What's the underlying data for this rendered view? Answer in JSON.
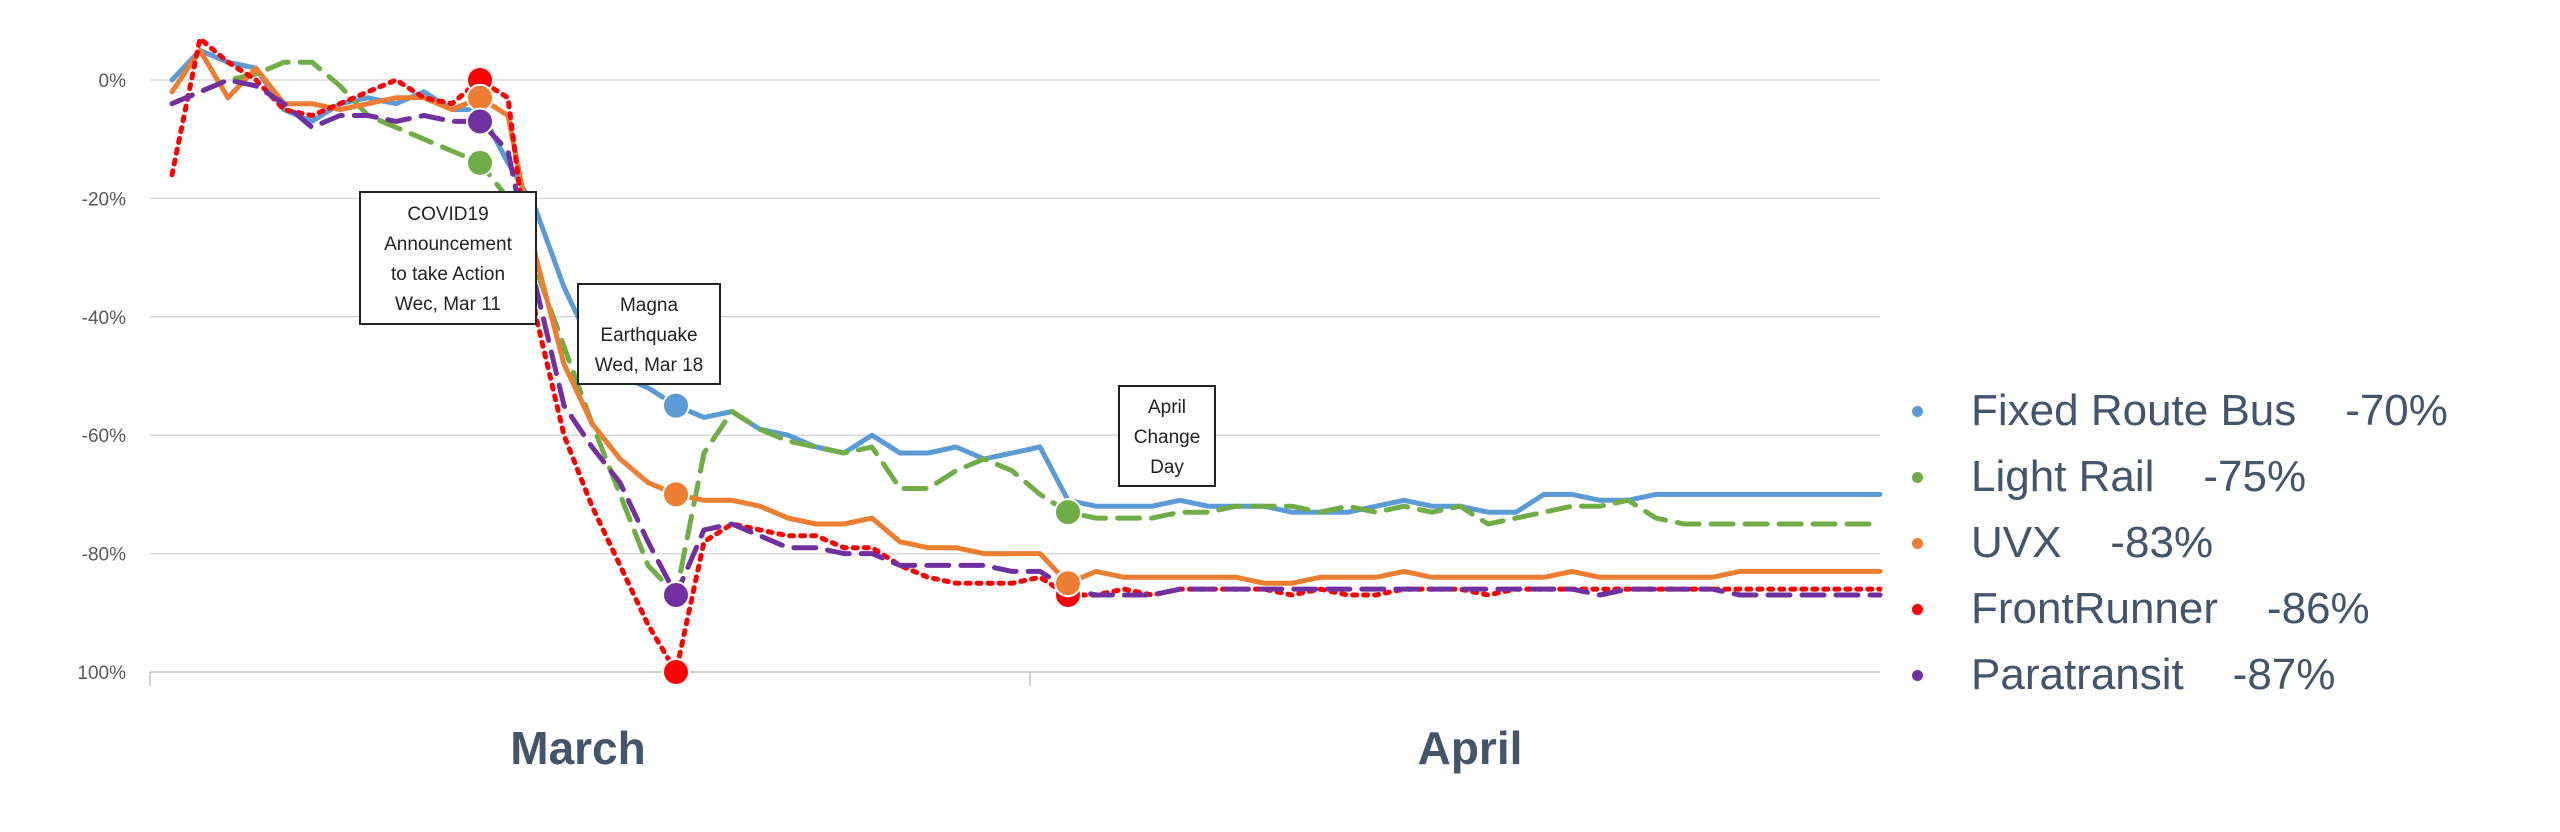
{
  "chart_data": {
    "type": "line",
    "title": "",
    "xlabel": "",
    "ylabel": "",
    "ylim": [
      -100,
      10
    ],
    "y_ticks": [
      "0%",
      "-20%",
      "-40%",
      "-60%",
      "-80%",
      "100%"
    ],
    "month_labels": [
      "March",
      "April"
    ],
    "x": [
      "Feb 29",
      "Mar 1",
      "Mar 2",
      "Mar 3",
      "Mar 4",
      "Mar 5",
      "Mar 6",
      "Mar 7",
      "Mar 8",
      "Mar 9",
      "Mar 10",
      "Mar 11",
      "Mar 12",
      "Mar 13",
      "Mar 14",
      "Mar 15",
      "Mar 16",
      "Mar 17",
      "Mar 18",
      "Mar 19",
      "Mar 20",
      "Mar 21",
      "Mar 22",
      "Mar 23",
      "Mar 24",
      "Mar 25",
      "Mar 26",
      "Mar 27",
      "Mar 28",
      "Mar 29",
      "Mar 30",
      "Mar 31",
      "Apr 1",
      "Apr 2",
      "Apr 3",
      "Apr 4",
      "Apr 5",
      "Apr 6",
      "Apr 7",
      "Apr 8",
      "Apr 9",
      "Apr 10",
      "Apr 11",
      "Apr 12",
      "Apr 13",
      "Apr 14",
      "Apr 15",
      "Apr 16",
      "Apr 17",
      "Apr 18",
      "Apr 19",
      "Apr 20",
      "Apr 21",
      "Apr 22",
      "Apr 23",
      "Apr 24",
      "Apr 25",
      "Apr 26",
      "Apr 27",
      "Apr 28",
      "Apr 29",
      "Apr 30"
    ],
    "series": [
      {
        "name": "Fixed Route Bus",
        "change": "-70%",
        "color": "#5B9BD5",
        "dash": "solid",
        "values": [
          0,
          5,
          3,
          2,
          -5,
          -7,
          -4,
          -3,
          -4,
          -2,
          -5,
          -5,
          -14,
          -22,
          -35,
          -45,
          -50,
          -52,
          -55,
          -57,
          -56,
          -59,
          -60,
          -62,
          -63,
          -60,
          -63,
          -63,
          -62,
          -64,
          -63,
          -62,
          -71,
          -72,
          -72,
          -72,
          -71,
          -72,
          -72,
          -72,
          -73,
          -73,
          -73,
          -72,
          -71,
          -72,
          -72,
          -73,
          -73,
          -70,
          -70,
          -71,
          -71,
          -70,
          -70,
          -70,
          -70,
          -70,
          -70,
          -70,
          -70,
          -70
        ]
      },
      {
        "name": "Light Rail",
        "change": "-75%",
        "color": "#70AD47",
        "dash": "dashed",
        "values": [
          -4,
          -2,
          0,
          1,
          3,
          3,
          -1,
          -6,
          -8,
          -10,
          -12,
          -14,
          -20,
          -32,
          -45,
          -58,
          -70,
          -82,
          -87,
          -63,
          -56,
          -59,
          -61,
          -62,
          -63,
          -62,
          -69,
          -69,
          -66,
          -64,
          -66,
          -70,
          -73,
          -74,
          -74,
          -74,
          -73,
          -73,
          -72,
          -72,
          -72,
          -73,
          -72,
          -73,
          -72,
          -73,
          -72,
          -75,
          -74,
          -73,
          -72,
          -72,
          -71,
          -74,
          -75,
          -75,
          -75,
          -75,
          -75,
          -75,
          -75,
          -75
        ]
      },
      {
        "name": "UVX",
        "change": "-83%",
        "color": "#ED7D31",
        "dash": "solid",
        "values": [
          -2,
          5,
          -3,
          2,
          -4,
          -4,
          -5,
          -4,
          -3,
          -3,
          -5,
          -3,
          -6,
          -30,
          -48,
          -58,
          -64,
          -68,
          -70,
          -71,
          -71,
          -72,
          -74,
          -75,
          -75,
          -74,
          -78,
          -79,
          -79,
          -80,
          -80,
          -80,
          -85,
          -83,
          -84,
          -84,
          -84,
          -84,
          -84,
          -85,
          -85,
          -84,
          -84,
          -84,
          -83,
          -84,
          -84,
          -84,
          -84,
          -84,
          -83,
          -84,
          -84,
          -84,
          -84,
          -84,
          -83,
          -83,
          -83,
          -83,
          -83,
          -83
        ]
      },
      {
        "name": "FrontRunner",
        "change": "-86%",
        "color": "#FF0000",
        "dash": "dotted",
        "values": [
          -16,
          7,
          3,
          0,
          -5,
          -6,
          -4,
          -2,
          0,
          -3,
          -4,
          0,
          -3,
          -40,
          -60,
          -72,
          -82,
          -92,
          -100,
          -78,
          -75,
          -76,
          -77,
          -77,
          -79,
          -79,
          -82,
          -84,
          -85,
          -85,
          -85,
          -84,
          -87,
          -87,
          -86,
          -87,
          -86,
          -86,
          -86,
          -86,
          -87,
          -86,
          -87,
          -87,
          -86,
          -86,
          -86,
          -87,
          -86,
          -86,
          -86,
          -86,
          -86,
          -86,
          -86,
          -86,
          -86,
          -86,
          -86,
          -86,
          -86,
          -86
        ]
      },
      {
        "name": "Paratransit",
        "change": "-87%",
        "color": "#7030A0",
        "dash": "dashed",
        "values": [
          -4,
          -2,
          0,
          -1,
          -4,
          -8,
          -6,
          -6,
          -7,
          -6,
          -7,
          -7,
          -12,
          -35,
          -55,
          -62,
          -68,
          -78,
          -87,
          -76,
          -75,
          -77,
          -79,
          -79,
          -80,
          -80,
          -82,
          -82,
          -82,
          -82,
          -83,
          -83,
          -86,
          -87,
          -87,
          -87,
          -86,
          -86,
          -86,
          -86,
          -86,
          -86,
          -86,
          -86,
          -86,
          -86,
          -86,
          -86,
          -86,
          -86,
          -86,
          -87,
          -86,
          -86,
          -86,
          -86,
          -87,
          -87,
          -87,
          -87,
          -87,
          -87
        ]
      }
    ],
    "highlights": [
      {
        "series": 3,
        "point": 11
      },
      {
        "series": 2,
        "point": 11
      },
      {
        "series": 4,
        "point": 11
      },
      {
        "series": 1,
        "point": 11
      },
      {
        "series": 0,
        "point": 18
      },
      {
        "series": 2,
        "point": 18
      },
      {
        "series": 4,
        "point": 18
      },
      {
        "series": 3,
        "point": 18
      },
      {
        "series": 1,
        "point": 32
      },
      {
        "series": 3,
        "point": 32
      },
      {
        "series": 2,
        "point": 32
      }
    ],
    "annotations": [
      {
        "lines": [
          "COVID19",
          "Announcement",
          "to take Action",
          "Wec, Mar 11"
        ]
      },
      {
        "lines": [
          "Magna",
          "Earthquake",
          "Wed, Mar 18"
        ]
      },
      {
        "lines": [
          "April",
          "Change",
          "Day"
        ]
      }
    ],
    "grid": true,
    "legend_position": "right"
  }
}
